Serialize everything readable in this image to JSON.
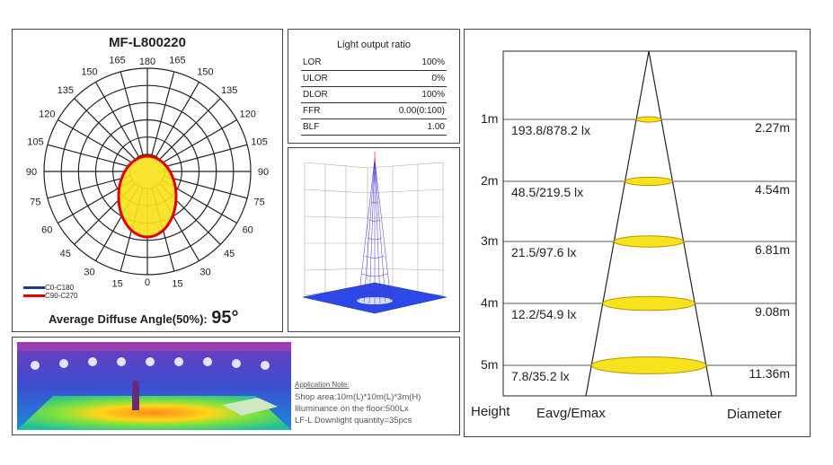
{
  "polar": {
    "title": "MF-L800220",
    "angle_labels_left": [
      "165",
      "150",
      "135",
      "120",
      "105",
      "90",
      "75",
      "60",
      "45",
      "30",
      "15"
    ],
    "angle_labels_right": [
      "165",
      "150",
      "135",
      "120",
      "105",
      "90",
      "75",
      "60",
      "45",
      "30",
      "15"
    ],
    "angle_label_top": "180",
    "angle_label_bottom": "0",
    "legend": [
      {
        "label": "C0-C180",
        "color": "#1f3a8a"
      },
      {
        "label": "C90-C270",
        "color": "#e00000"
      }
    ],
    "diffuse_label": "Average Diffuse Angle(50%):",
    "diffuse_value": "95°",
    "curve_colors": {
      "stroke": "#e00000",
      "fill": "#f7e21b"
    }
  },
  "ratios": {
    "title": "Light output ratio",
    "rows": [
      {
        "key": "LOR",
        "value": "100%"
      },
      {
        "key": "ULOR",
        "value": "0%"
      },
      {
        "key": "DLOR",
        "value": "100%"
      },
      {
        "key": "FFR",
        "value": "0.00(0:100)"
      },
      {
        "key": "BLF",
        "value": "1.00"
      }
    ]
  },
  "app_note": {
    "title": "Application Note:",
    "lines": [
      "Shop area:10m(L)*10m(L)*3m(H)",
      "Illuminance on the floor:500Lx",
      "LF-L Downlight quantity=35pcs"
    ]
  },
  "cone": {
    "rows": [
      {
        "height": "1m",
        "eavg": "193.8/878.2 lx",
        "diameter": "2.27m"
      },
      {
        "height": "2m",
        "eavg": "48.5/219.5 lx",
        "diameter": "4.54m"
      },
      {
        "height": "3m",
        "eavg": "21.5/97.6 lx",
        "diameter": "6.81m"
      },
      {
        "height": "4m",
        "eavg": "12.2/54.9 lx",
        "diameter": "9.08m"
      },
      {
        "height": "5m",
        "eavg": "7.8/35.2 lx",
        "diameter": "11.36m"
      }
    ],
    "footer": {
      "height": "Height",
      "eavg": "Eavg/Emax",
      "diameter": "Diameter"
    },
    "colors": {
      "ellipse_fill": "#f7e21b",
      "ellipse_stroke": "#b89400"
    }
  }
}
